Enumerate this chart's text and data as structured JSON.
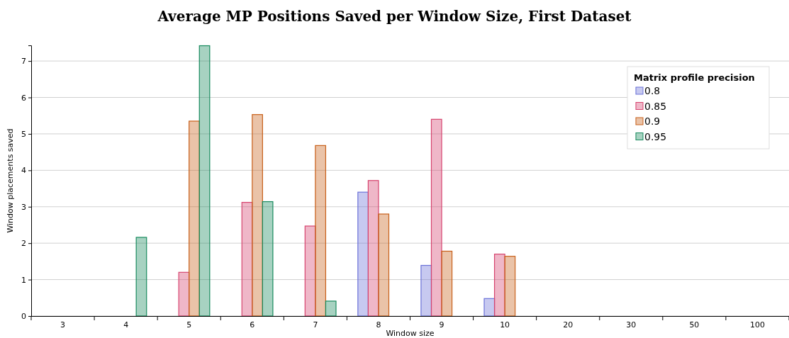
{
  "chart_data": {
    "type": "bar",
    "title": "Average MP Positions Saved per Window Size, First Dataset",
    "xlabel": "Window size",
    "ylabel": "Window placements saved",
    "legend_title": "Matrix profile precision",
    "categories": [
      "3",
      "4",
      "5",
      "6",
      "7",
      "8",
      "9",
      "10",
      "20",
      "30",
      "50",
      "100"
    ],
    "series": [
      {
        "name": "0.8",
        "color": "#6b72d8",
        "values": [
          null,
          null,
          null,
          null,
          null,
          3.4,
          1.39,
          0.48,
          null,
          null,
          null,
          null
        ]
      },
      {
        "name": "0.85",
        "color": "#d6436e",
        "values": [
          null,
          null,
          1.2,
          3.12,
          2.47,
          3.72,
          5.4,
          1.7,
          null,
          null,
          null,
          null
        ]
      },
      {
        "name": "0.9",
        "color": "#c8601a",
        "values": [
          null,
          null,
          5.35,
          5.53,
          4.68,
          2.8,
          1.78,
          1.64,
          null,
          null,
          null,
          null
        ]
      },
      {
        "name": "0.95",
        "color": "#178a5d",
        "values": [
          null,
          2.16,
          7.42,
          3.14,
          0.41,
          null,
          null,
          null,
          null,
          null,
          null,
          null
        ]
      }
    ],
    "ylim": [
      0,
      7.43
    ],
    "yticks": [
      0,
      1,
      2,
      3,
      4,
      5,
      6,
      7
    ],
    "grid": "y",
    "legend": "top right"
  }
}
